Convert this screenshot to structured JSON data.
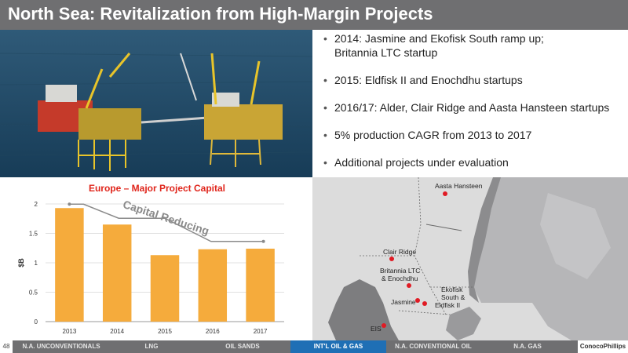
{
  "title": "North Sea: Revitalization from High-Margin Projects",
  "bullets": [
    "2014: Jasmine and Ekofisk South ramp up; Britannia LTC startup",
    "2015: Eldfisk II and Enochdhu startups",
    "2016/17: Alder, Clair Ridge and Aasta Hansteen startups",
    "5% production CAGR from 2013 to 2017",
    "Additional projects under evaluation"
  ],
  "bullet_lines": [
    [
      "2014: Jasmine and Ekofisk South ramp up;",
      "Britannia LTC startup"
    ]
  ],
  "chart_data": {
    "type": "bar",
    "title": "Europe – Major Project Capital",
    "ylabel": "$B",
    "xlabel": "",
    "categories": [
      "2013",
      "2014",
      "2015",
      "2016",
      "2017"
    ],
    "values": [
      1.93,
      1.65,
      1.13,
      1.23,
      1.24
    ],
    "ylim": [
      0,
      2
    ],
    "yticks": [
      "0",
      "0.5",
      "1",
      "1.5",
      "2"
    ],
    "annotation": "Capital Reducing",
    "bar_color": "#f5ab3c",
    "grid": true
  },
  "map": {
    "labels": {
      "aasta": "Aasta Hansteen",
      "clair": "Clair Ridge",
      "britannia1": "Britannia LTC",
      "britannia2": "& Enochdhu",
      "ekofisk1": "Ekofisk",
      "ekofisk2": "South &",
      "ekofisk3": "Eldfisk II",
      "jasmine": "Jasmine",
      "eis": "EIS"
    },
    "colors": {
      "sea": "#dcdcdc",
      "land_norway": "#a9a9ab",
      "land_uk": "#8a8a8c",
      "marker": "#e01b24"
    }
  },
  "footer": {
    "page_number": "48",
    "nav": [
      "N.A. UNCONVENTIONALS",
      "LNG",
      "OIL SANDS",
      "INT'L OIL & GAS",
      "N.A. CONVENTIONAL OIL",
      "N.A. GAS"
    ],
    "active": "INT'L OIL & GAS",
    "logo": "ConocoPhillips"
  }
}
